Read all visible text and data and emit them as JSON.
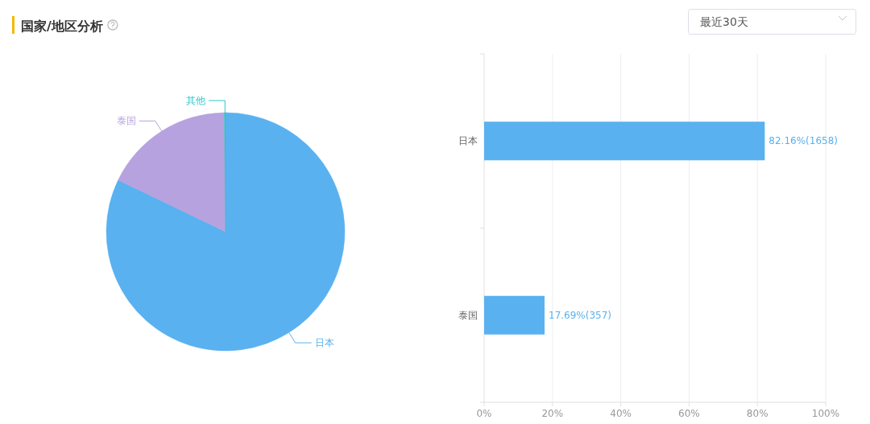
{
  "chart_data": [
    {
      "type": "pie",
      "title": "国家/地区分析",
      "categories": [
        "日本",
        "泰国",
        "其他"
      ],
      "values": [
        82.16,
        17.69,
        0.15
      ],
      "colors": [
        "#5ab1ef",
        "#b6a2de",
        "#2ec7c9"
      ]
    },
    {
      "type": "bar",
      "orientation": "horizontal",
      "categories": [
        "日本",
        "泰国"
      ],
      "values": [
        82.16,
        17.69
      ],
      "color": "#5ab1ef",
      "value_labels": [
        "82.16%(1658)",
        "17.69%(357)"
      ],
      "xlim": [
        0,
        100
      ],
      "xticks": [
        {
          "value": 0,
          "label": "0%"
        },
        {
          "value": 20,
          "label": "20%"
        },
        {
          "value": 40,
          "label": "40%"
        },
        {
          "value": 60,
          "label": "60%"
        },
        {
          "value": 80,
          "label": "80%"
        },
        {
          "value": 100,
          "label": "100%"
        }
      ],
      "grid": "x",
      "annotations": [
        "最近30天"
      ]
    }
  ]
}
